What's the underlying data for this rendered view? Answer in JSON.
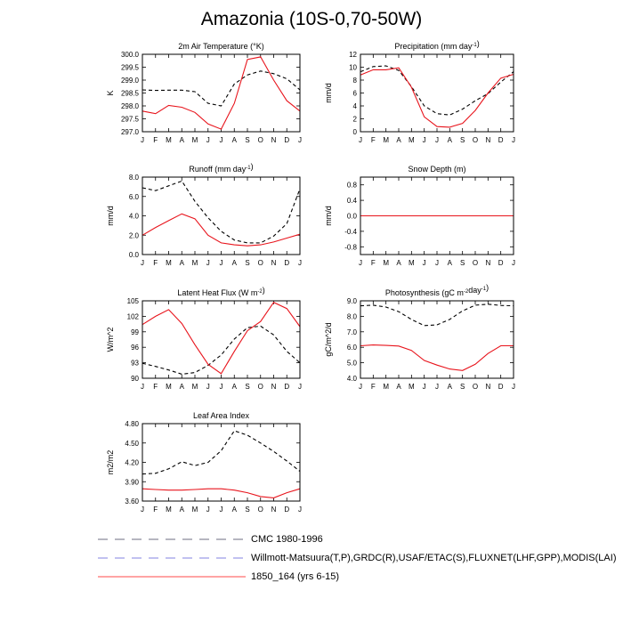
{
  "page": {
    "title": "Amazonia (10S-0,70-50W)"
  },
  "months": [
    "J",
    "F",
    "M",
    "A",
    "M",
    "J",
    "J",
    "A",
    "S",
    "O",
    "N",
    "D",
    "J"
  ],
  "legend": {
    "items": [
      {
        "label": "CMC 1980-1996",
        "color": "#8a8a9a",
        "style": "dashed"
      },
      {
        "label": "Willmott-Matsuura(T,P),GRDC(R),USAF/ETAC(S),FLUXNET(LHF,GPP),MODIS(LAI)",
        "color": "#9c9ce6",
        "style": "dashed"
      },
      {
        "label": "1850_164 (yrs 6-15)",
        "color": "#ff6e6e",
        "style": "solid"
      }
    ]
  },
  "chart_data": [
    {
      "type": "line",
      "title": "2m Air Temperature (°K)",
      "ylabel": "K",
      "ylim": [
        297.0,
        300.0
      ],
      "yticks": [
        "297.0",
        "297.5",
        "298.0",
        "298.5",
        "299.0",
        "299.5",
        "300.0"
      ],
      "series": [
        {
          "style": "dashed",
          "values": [
            298.62,
            298.6,
            298.61,
            298.61,
            298.55,
            298.1,
            298.0,
            298.85,
            299.2,
            299.35,
            299.25,
            299.05,
            298.62
          ]
        },
        {
          "style": "solid",
          "values": [
            297.8,
            297.7,
            298.02,
            297.95,
            297.75,
            297.3,
            297.1,
            298.1,
            299.8,
            299.9,
            299.0,
            298.2,
            297.8
          ]
        }
      ]
    },
    {
      "type": "line",
      "title": "Precipitation (mm day-1)",
      "ylabel": "mm/d",
      "ylim": [
        0,
        12
      ],
      "yticks": [
        "0",
        "2",
        "4",
        "6",
        "8",
        "10",
        "12"
      ],
      "series": [
        {
          "style": "dashed",
          "values": [
            9.3,
            10.1,
            10.2,
            9.5,
            7.0,
            4.0,
            2.8,
            2.6,
            3.5,
            4.8,
            5.9,
            7.7,
            9.3
          ]
        },
        {
          "style": "solid",
          "values": [
            8.8,
            9.6,
            9.6,
            9.9,
            6.9,
            2.3,
            0.8,
            0.7,
            1.3,
            3.3,
            6.0,
            8.3,
            8.9
          ]
        }
      ]
    },
    {
      "type": "line",
      "title": "Runoff (mm day-1)",
      "ylabel": "mm/d",
      "ylim": [
        0.0,
        8.0
      ],
      "yticks": [
        "0.0",
        "2.0",
        "4.0",
        "6.0",
        "8.0"
      ],
      "series": [
        {
          "style": "dashed",
          "values": [
            6.9,
            6.6,
            7.1,
            7.6,
            5.5,
            3.8,
            2.4,
            1.5,
            1.2,
            1.2,
            1.9,
            3.2,
            6.8
          ]
        },
        {
          "style": "solid",
          "values": [
            2.0,
            2.8,
            3.5,
            4.2,
            3.7,
            2.0,
            1.2,
            1.0,
            0.9,
            1.0,
            1.3,
            1.7,
            2.1
          ]
        }
      ]
    },
    {
      "type": "line",
      "title": "Snow Depth (m)",
      "ylabel": "mm/d",
      "ylim": [
        -1.0,
        1.0
      ],
      "yticks": [
        "-0.8",
        "-0.4",
        "0.0",
        "0.4",
        "0.8"
      ],
      "series": [
        {
          "style": "dashed",
          "values": [
            0,
            0,
            0,
            0,
            0,
            0,
            0,
            0,
            0,
            0,
            0,
            0,
            0
          ]
        },
        {
          "style": "solid",
          "values": [
            0,
            0,
            0,
            0,
            0,
            0,
            0,
            0,
            0,
            0,
            0,
            0,
            0
          ]
        }
      ]
    },
    {
      "type": "line",
      "title": "Latent Heat Flux (W m-2)",
      "ylabel": "W/m^2",
      "ylim": [
        90,
        105
      ],
      "yticks": [
        "90",
        "93",
        "96",
        "99",
        "102",
        "105"
      ],
      "series": [
        {
          "style": "dashed",
          "values": [
            92.9,
            92.3,
            91.6,
            90.8,
            91.1,
            92.5,
            94.5,
            97.6,
            99.8,
            100.1,
            98.4,
            95.2,
            93.0
          ]
        },
        {
          "style": "solid",
          "values": [
            100.4,
            102.0,
            103.3,
            100.6,
            96.5,
            92.7,
            90.9,
            95.2,
            99.2,
            101.0,
            104.7,
            103.5,
            100.0
          ]
        }
      ]
    },
    {
      "type": "line",
      "title": "Photosynthesis (gC m-2day-1)",
      "ylabel": "gC/m^2/d",
      "ylim": [
        4.0,
        9.0
      ],
      "yticks": [
        "4.0",
        "5.0",
        "6.0",
        "7.0",
        "8.0",
        "9.0"
      ],
      "series": [
        {
          "style": "dashed",
          "values": [
            8.68,
            8.72,
            8.6,
            8.3,
            7.8,
            7.4,
            7.45,
            7.8,
            8.35,
            8.72,
            8.78,
            8.7,
            8.68
          ]
        },
        {
          "style": "solid",
          "values": [
            6.1,
            6.15,
            6.12,
            6.08,
            5.8,
            5.15,
            4.85,
            4.6,
            4.5,
            4.9,
            5.6,
            6.1,
            6.1
          ]
        }
      ]
    },
    {
      "type": "line",
      "title": "Leaf Area Index",
      "ylabel": "m2/m2",
      "ylim": [
        3.6,
        4.8
      ],
      "yticks": [
        "3.60",
        "3.90",
        "4.20",
        "4.50",
        "4.80"
      ],
      "series": [
        {
          "style": "dashed",
          "values": [
            4.02,
            4.03,
            4.1,
            4.21,
            4.15,
            4.2,
            4.38,
            4.69,
            4.62,
            4.5,
            4.37,
            4.22,
            4.06
          ]
        },
        {
          "style": "solid",
          "values": [
            3.79,
            3.78,
            3.77,
            3.77,
            3.78,
            3.79,
            3.79,
            3.77,
            3.73,
            3.67,
            3.65,
            3.73,
            3.79
          ]
        }
      ]
    }
  ]
}
